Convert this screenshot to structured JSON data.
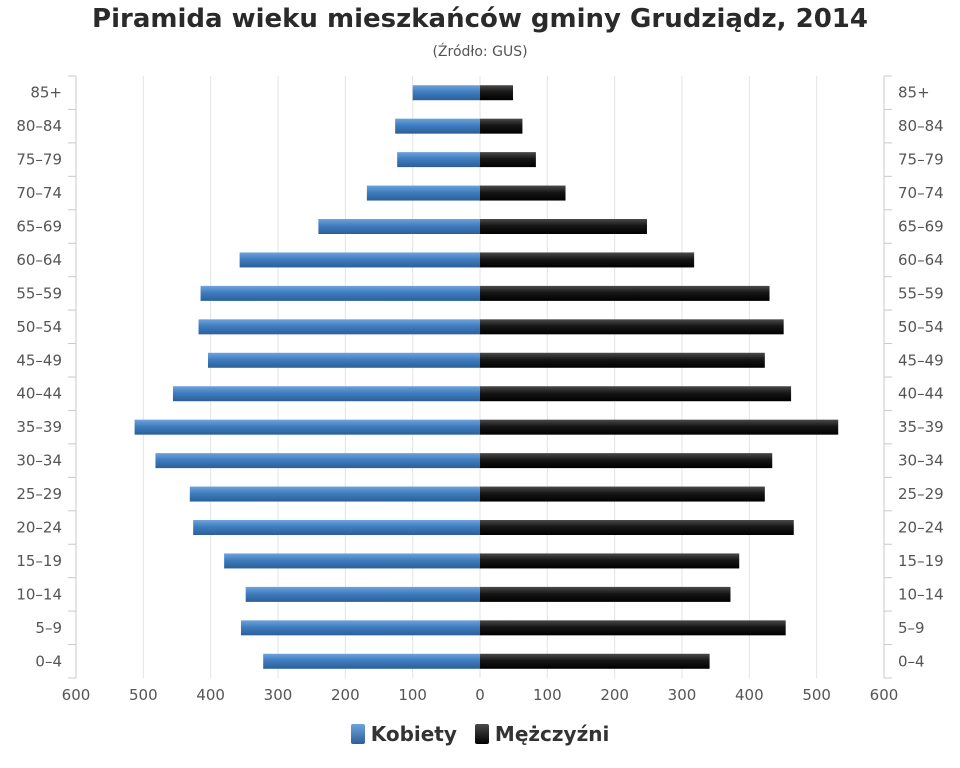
{
  "title": "Piramida wieku mieszkańców gminy Grudziądz, 2014",
  "subtitle": "(Źródło: GUS)",
  "chart_data": {
    "type": "bar",
    "orientation": "horizontal-pyramid",
    "categories": [
      "0–4",
      "5–9",
      "10–14",
      "15–19",
      "20–24",
      "25–29",
      "30–34",
      "35–39",
      "40–44",
      "45–49",
      "50–54",
      "55–59",
      "60–64",
      "65–69",
      "70–74",
      "75–79",
      "80–84",
      "85+"
    ],
    "series": [
      {
        "name": "Kobiety",
        "color": "#3f7dbf",
        "values": [
          322,
          355,
          348,
          380,
          426,
          431,
          482,
          513,
          456,
          404,
          418,
          415,
          357,
          240,
          168,
          123,
          126,
          100
        ]
      },
      {
        "name": "Mężczyźni",
        "color": "#141414",
        "values": [
          341,
          454,
          372,
          385,
          466,
          423,
          434,
          532,
          462,
          423,
          451,
          430,
          318,
          248,
          127,
          83,
          63,
          49
        ]
      }
    ],
    "xlim": [
      -600,
      600
    ],
    "x_ticks": [
      "600",
      "500",
      "400",
      "300",
      "200",
      "100",
      "0",
      "100",
      "200",
      "300",
      "400",
      "500",
      "600"
    ],
    "grid": true,
    "legend": "bottom-center"
  }
}
